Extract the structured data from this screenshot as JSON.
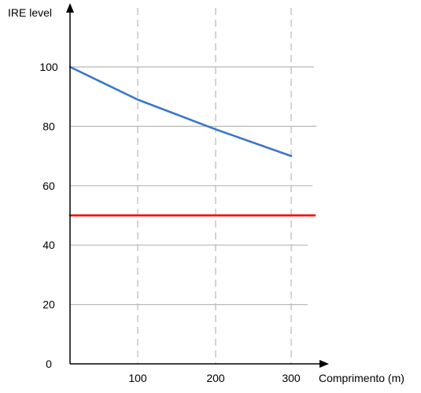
{
  "chart_data": {
    "type": "line",
    "xlabel": "Comprimento (m)",
    "ylabel": "IRE level",
    "x_ticks": [
      100,
      200,
      300
    ],
    "y_ticks": [
      0,
      20,
      40,
      60,
      80,
      100
    ],
    "xlim": [
      0,
      300
    ],
    "ylim": [
      0,
      100
    ],
    "grid": {
      "horizontal": "solid",
      "vertical": "dashed"
    },
    "series": [
      {
        "color": "#3a76c8",
        "x": [
          0,
          100,
          200,
          300
        ],
        "y": [
          100,
          89,
          79,
          70
        ]
      },
      {
        "color": "#ff0000",
        "x": [
          0,
          330
        ],
        "y": [
          50,
          50
        ]
      }
    ]
  }
}
